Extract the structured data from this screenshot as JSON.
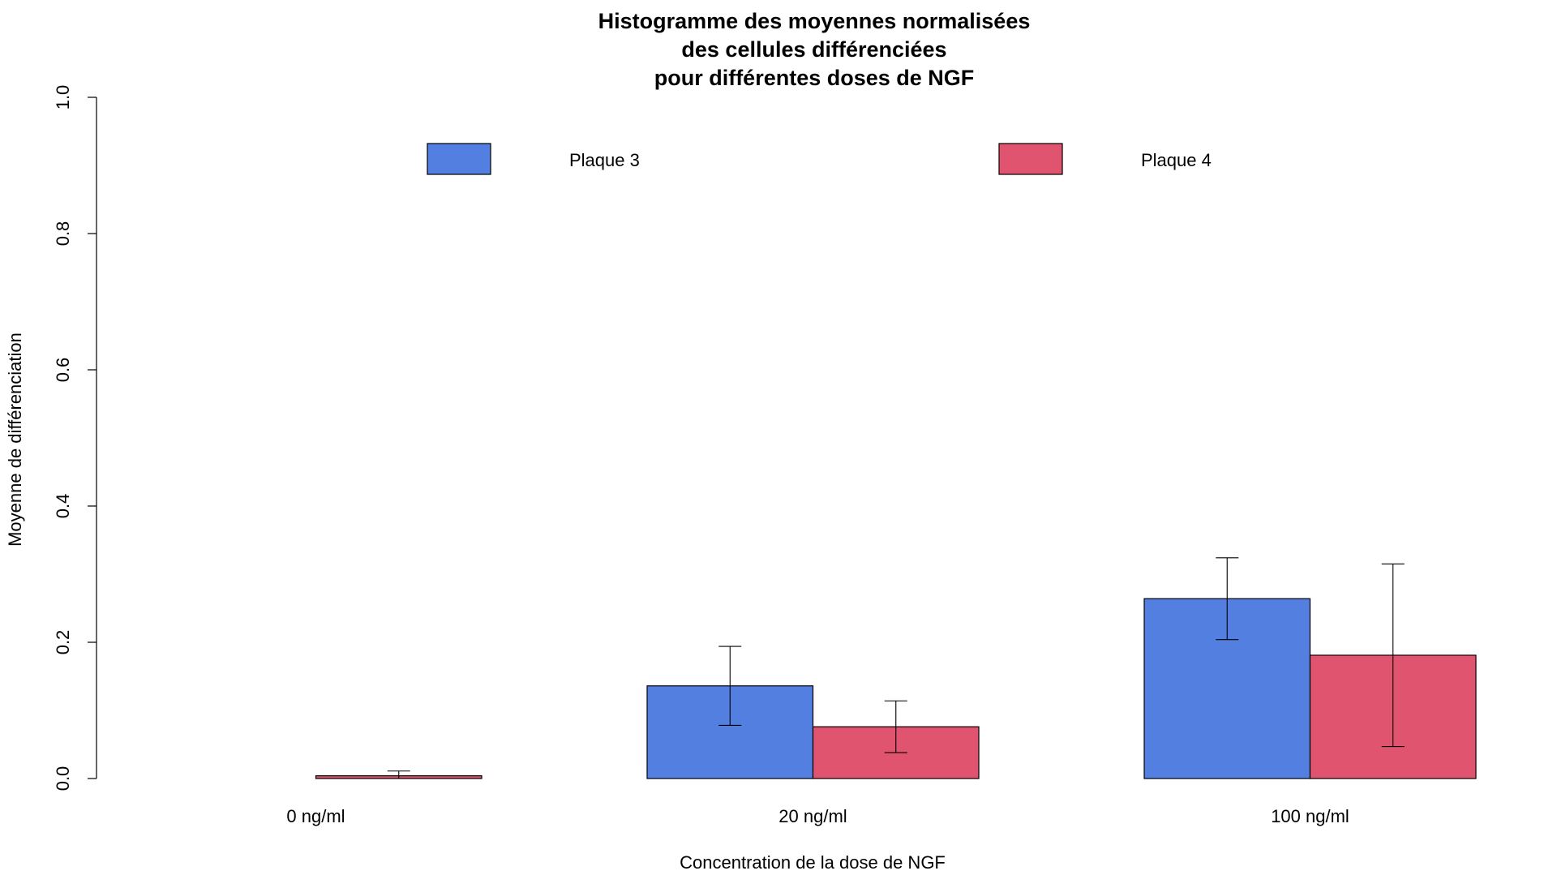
{
  "chart_data": {
    "type": "bar",
    "title_lines": [
      "Histogramme des moyennes normalisées",
      "des cellules différenciées",
      "pour différentes doses de NGF"
    ],
    "xlabel": "Concentration de la dose de NGF",
    "ylabel": "Moyenne de différenciation",
    "ylim": [
      0,
      1
    ],
    "yticks": [
      "0.0",
      "0.2",
      "0.4",
      "0.6",
      "0.8",
      "1.0"
    ],
    "categories": [
      "0 ng/ml",
      "20 ng/ml",
      "100 ng/ml"
    ],
    "series": [
      {
        "name": "Plaque 3",
        "color": "#527fe0",
        "values": [
          0.0,
          0.136,
          0.264
        ],
        "error": [
          0.0,
          0.058,
          0.06
        ]
      },
      {
        "name": "Plaque 4",
        "color": "#e05470",
        "values": [
          0.004,
          0.076,
          0.181
        ],
        "error": [
          0.007,
          0.038,
          0.134
        ]
      }
    ],
    "legend_position": "top",
    "grid": false
  }
}
